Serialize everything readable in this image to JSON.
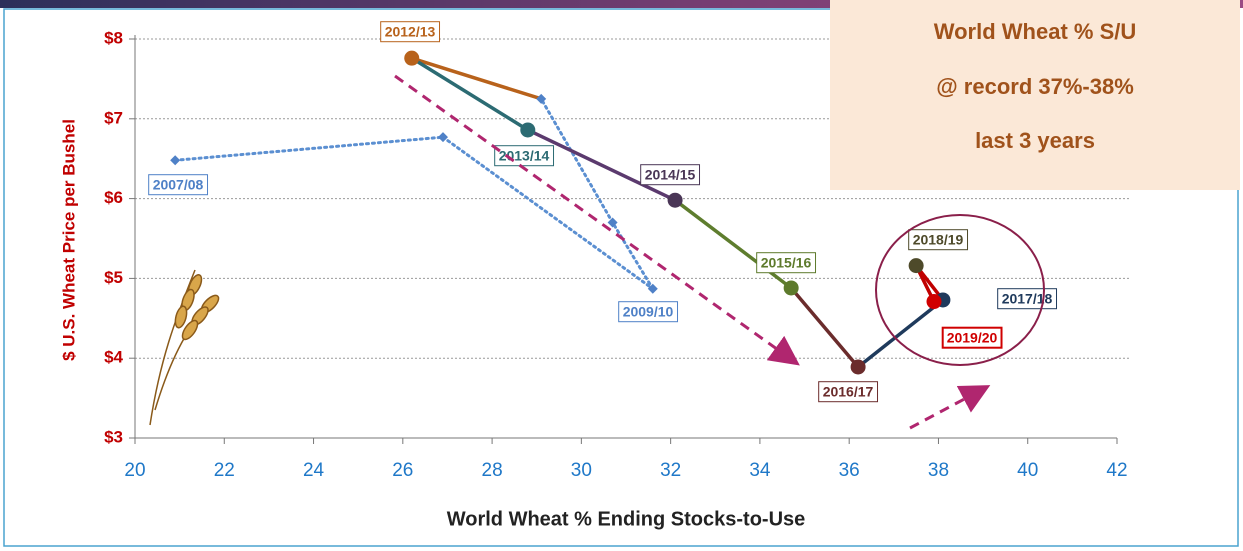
{
  "chart_data": {
    "type": "connected-scatter",
    "x_label": "World Wheat % Ending Stocks-to-Use",
    "y_label": "$ U.S. Wheat Price per Bushel",
    "annotation": [
      "World Wheat % S/U",
      "@ record 37%-38%",
      "last 3 years"
    ],
    "x": [
      20.9,
      26.9,
      31.6,
      30.7,
      29.1,
      26.2,
      28.8,
      32.1,
      34.7,
      36.2,
      38.1,
      37.5,
      37.9
    ],
    "values": [
      6.48,
      6.77,
      4.87,
      5.7,
      7.25,
      7.76,
      6.86,
      5.98,
      4.88,
      3.89,
      4.73,
      5.16,
      4.71
    ],
    "labels": [
      "2007/08",
      null,
      "2009/10",
      null,
      null,
      "2012/13",
      "2013/14",
      "2014/15",
      "2015/16",
      "2016/17",
      "2017/18",
      "2018/19",
      "2019/20"
    ],
    "markers": [
      "diamond",
      "diamond",
      "diamond",
      "diamond",
      "diamond",
      "circle",
      "circle",
      "circle",
      "circle",
      "circle",
      "circle",
      "circle",
      "circle"
    ],
    "point_colors": [
      "#4f81c7",
      "#4f81c7",
      "#4f81c7",
      "#4f81c7",
      "#4f81c7",
      "#b8621b",
      "#2c6b73",
      "#4a3656",
      "#5d7a2c",
      "#6b2c2c",
      "#1f3a5c",
      "#4e4a2a",
      "#d00000"
    ],
    "segment_colors": [
      "#5b8fd1",
      "#5b8fd1",
      "#5b8fd1",
      "#5b8fd1",
      "#b8621b",
      "#2c6b73",
      "#5b3a6e",
      "#5e7d2e",
      "#6b2c2c",
      "#1f3a5c",
      "#c00000",
      "#c00000"
    ],
    "segment_dashed": [
      true,
      true,
      true,
      true,
      false,
      false,
      false,
      false,
      false,
      false,
      false,
      false
    ],
    "xlim": [
      20,
      42
    ],
    "xticks": [
      20,
      22,
      24,
      26,
      28,
      30,
      32,
      34,
      36,
      38,
      40,
      42
    ],
    "ylim": [
      3,
      8
    ],
    "yticks": [
      {
        "value": 3,
        "label": "$3"
      },
      {
        "value": 4,
        "label": "$4"
      },
      {
        "value": 5,
        "label": "$5"
      },
      {
        "value": 6,
        "label": "$6"
      },
      {
        "value": 7,
        "label": "$7"
      },
      {
        "value": 8,
        "label": "$8"
      }
    ],
    "grid": true
  }
}
